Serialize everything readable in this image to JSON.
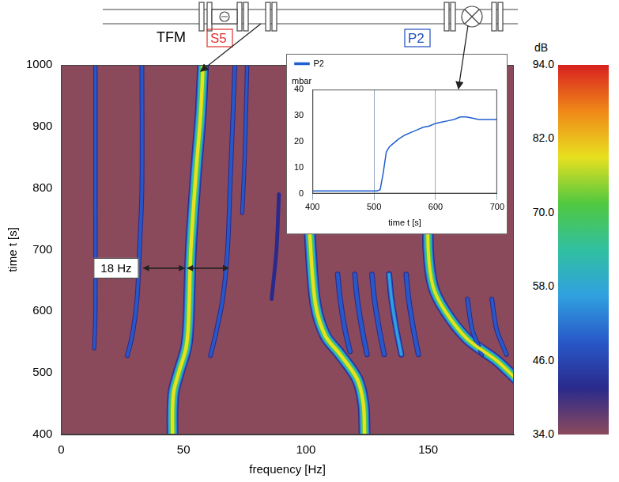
{
  "chart_data": [
    {
      "type": "line",
      "x_label": "frequency [Hz]",
      "y_label": "time t [s]",
      "xlim": [
        0,
        185
      ],
      "xticks": [
        0,
        50,
        100,
        150
      ],
      "ylim": [
        400,
        1000
      ],
      "yticks": [
        400,
        500,
        600,
        700,
        800,
        900,
        1000
      ],
      "grid": false,
      "series": [
        {
          "level": 50,
          "x": [
            13.5,
            14,
            14,
            14
          ],
          "values": [
            540,
            600,
            800,
            1000
          ]
        },
        {
          "level": 52,
          "x": [
            27,
            29,
            31,
            32,
            33,
            33
          ],
          "values": [
            528,
            560,
            620,
            700,
            800,
            1000
          ]
        },
        {
          "level": 84,
          "x": [
            45.5,
            45.5,
            46,
            48,
            51,
            52,
            53,
            55,
            57,
            58
          ],
          "values": [
            400,
            440,
            470,
            500,
            540,
            580,
            700,
            820,
            920,
            1000
          ]
        },
        {
          "level": 52,
          "x": [
            61,
            63,
            66,
            68,
            69,
            70,
            71
          ],
          "values": [
            528,
            560,
            620,
            700,
            800,
            900,
            1000
          ]
        },
        {
          "level": 50,
          "x": [
            74,
            75,
            76
          ],
          "values": [
            760,
            850,
            1000
          ]
        },
        {
          "level": 48,
          "x": [
            86,
            88,
            89
          ],
          "values": [
            620,
            700,
            790
          ]
        },
        {
          "level": 84,
          "x": [
            124,
            123.5,
            121,
            114,
            108,
            104,
            102,
            101,
            102,
            103
          ],
          "values": [
            400,
            450,
            490,
            530,
            560,
            610,
            700,
            800,
            900,
            1000
          ]
        },
        {
          "level": 55,
          "x": [
            118,
            116,
            114,
            113
          ],
          "values": [
            535,
            570,
            620,
            660
          ]
        },
        {
          "level": 55,
          "x": [
            125,
            123,
            121,
            120
          ],
          "values": [
            530,
            570,
            620,
            660
          ]
        },
        {
          "level": 55,
          "x": [
            132,
            130,
            128,
            127
          ],
          "values": [
            530,
            570,
            620,
            660
          ]
        },
        {
          "level": 58,
          "x": [
            139,
            137,
            135,
            134
          ],
          "values": [
            530,
            570,
            620,
            660
          ]
        },
        {
          "level": 55,
          "x": [
            146,
            144,
            142,
            141
          ],
          "values": [
            530,
            570,
            620,
            660
          ]
        },
        {
          "level": 82,
          "x": [
            186,
            178,
            166,
            157,
            152,
            150,
            150,
            150,
            151
          ],
          "values": [
            490,
            520,
            555,
            600,
            640,
            700,
            800,
            900,
            1000
          ]
        },
        {
          "level": 52,
          "x": [
            172,
            168,
            166
          ],
          "values": [
            530,
            570,
            620
          ]
        },
        {
          "level": 52,
          "x": [
            182,
            178,
            176
          ],
          "values": [
            530,
            570,
            620
          ]
        }
      ],
      "colorbar": {
        "label": "dB",
        "range": [
          34,
          94
        ],
        "ticks": [
          {
            "value": 34,
            "label": "34.0"
          },
          {
            "value": 46,
            "label": "46.0"
          },
          {
            "value": 58,
            "label": "58.0"
          },
          {
            "value": 70,
            "label": "70.0"
          },
          {
            "value": 82,
            "label": "82.0"
          },
          {
            "value": 94,
            "label": "94.0"
          }
        ],
        "colors": [
          "#8b4a5c",
          "#2a2a8c",
          "#2858c8",
          "#30a0e0",
          "#30c0a0",
          "#50c840",
          "#e8e020",
          "#f08818",
          "#d82020"
        ]
      },
      "annotation": {
        "text": "18 Hz",
        "y": 670,
        "arrows": [
          [
            33,
            51
          ],
          [
            51,
            69
          ]
        ]
      }
    },
    {
      "type": "line",
      "x_label": "time t [s]",
      "y_label": "mbar",
      "xlim": [
        400,
        700
      ],
      "xticks": [
        400,
        500,
        600,
        700
      ],
      "ylim": [
        0,
        40
      ],
      "yticks": [
        0,
        10,
        20,
        30,
        40
      ],
      "grid": "x",
      "legend": "top-left",
      "series": [
        {
          "name": "P2",
          "color": "#1f5fd0",
          "x": [
            400,
            420,
            440,
            460,
            480,
            500,
            505,
            510,
            515,
            520,
            525,
            530,
            540,
            550,
            560,
            570,
            580,
            590,
            600,
            610,
            620,
            630,
            640,
            650,
            660,
            670,
            680,
            690,
            700
          ],
          "values": [
            1,
            1,
            1,
            1,
            1,
            1,
            1,
            1.5,
            8,
            16,
            18,
            19,
            21,
            22.5,
            23.5,
            24.5,
            25.5,
            26,
            27,
            27.5,
            28,
            28.5,
            29.5,
            29.5,
            29,
            28.5,
            28.5,
            28.5,
            28.5
          ]
        }
      ]
    }
  ],
  "diagram": {
    "flowmeter": "TFM",
    "sensor": "S5",
    "pressure_sensor": "P2"
  }
}
